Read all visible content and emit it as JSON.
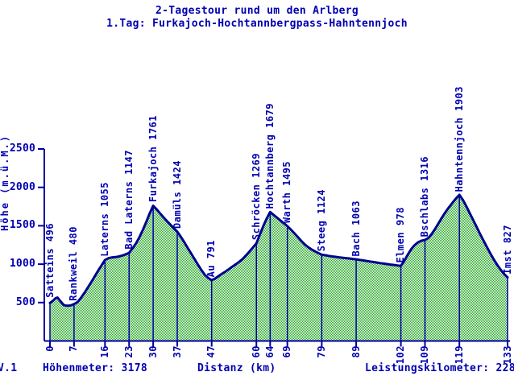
{
  "title": {
    "line1": "2-Tagestour rund um den Arlberg",
    "line2": "1.Tag: Furkajoch-Hochtannbergpass-Hahntennjoch"
  },
  "axes": {
    "y_label": "Höhe (m.ü.M.)",
    "x_label": "Distanz (km)"
  },
  "footer": {
    "version": "V.1",
    "elevation_gain": "Höhenmeter: 3178",
    "performance_km": "Leistungskilometer: 228"
  },
  "chart_data": {
    "type": "area",
    "title": "2-Tagestour rund um den Arlberg — 1.Tag: Furkajoch-Hochtannbergpass-Hahntennjoch",
    "xlabel": "Distanz (km)",
    "ylabel": "Höhe (m.ü.M.)",
    "xlim": [
      0,
      133
    ],
    "ylim": [
      0,
      2500
    ],
    "grid": false,
    "legend": "none",
    "y_ticks": [
      500,
      1000,
      1500,
      2000,
      2500
    ],
    "x_ticks": [
      0,
      7,
      16,
      23,
      30,
      37,
      47,
      60,
      64,
      69,
      79,
      89,
      102,
      109,
      119,
      133
    ],
    "waypoints": [
      {
        "name": "Satteins",
        "km": 0,
        "elevation": 496
      },
      {
        "name": "Rankweil",
        "km": 7,
        "elevation": 480
      },
      {
        "name": "Laterns",
        "km": 16,
        "elevation": 1055
      },
      {
        "name": "Bad Laterns",
        "km": 23,
        "elevation": 1147
      },
      {
        "name": "Furkajoch",
        "km": 30,
        "elevation": 1761
      },
      {
        "name": "Damüls",
        "km": 37,
        "elevation": 1424
      },
      {
        "name": "Au",
        "km": 47,
        "elevation": 791
      },
      {
        "name": "Schröcken",
        "km": 60,
        "elevation": 1269
      },
      {
        "name": "Hochtannberg",
        "km": 64,
        "elevation": 1679
      },
      {
        "name": "Warth",
        "km": 69,
        "elevation": 1495
      },
      {
        "name": "Steeg",
        "km": 79,
        "elevation": 1124
      },
      {
        "name": "Bach",
        "km": 89,
        "elevation": 1063
      },
      {
        "name": "Elmen",
        "km": 102,
        "elevation": 978
      },
      {
        "name": "Bschlabs",
        "km": 109,
        "elevation": 1316
      },
      {
        "name": "Hahntennjoch",
        "km": 119,
        "elevation": 1903
      },
      {
        "name": "Imst",
        "km": 133,
        "elevation": 827
      }
    ],
    "profile": [
      [
        0,
        496
      ],
      [
        0.8,
        520
      ],
      [
        1.6,
        556
      ],
      [
        2.2,
        565
      ],
      [
        3,
        520
      ],
      [
        4,
        468
      ],
      [
        5,
        458
      ],
      [
        6,
        462
      ],
      [
        7,
        480
      ],
      [
        8,
        505
      ],
      [
        9,
        560
      ],
      [
        10,
        625
      ],
      [
        11,
        695
      ],
      [
        12,
        765
      ],
      [
        13,
        840
      ],
      [
        14,
        915
      ],
      [
        15,
        985
      ],
      [
        16,
        1055
      ],
      [
        17,
        1078
      ],
      [
        18,
        1088
      ],
      [
        19,
        1092
      ],
      [
        20,
        1100
      ],
      [
        21,
        1112
      ],
      [
        22,
        1128
      ],
      [
        23,
        1147
      ],
      [
        24,
        1205
      ],
      [
        25,
        1270
      ],
      [
        26,
        1350
      ],
      [
        27,
        1445
      ],
      [
        28,
        1550
      ],
      [
        29,
        1660
      ],
      [
        30,
        1761
      ],
      [
        31,
        1715
      ],
      [
        32,
        1660
      ],
      [
        33,
        1610
      ],
      [
        34,
        1562
      ],
      [
        35,
        1515
      ],
      [
        36,
        1468
      ],
      [
        37,
        1424
      ],
      [
        38,
        1358
      ],
      [
        39,
        1288
      ],
      [
        40,
        1215
      ],
      [
        41,
        1142
      ],
      [
        42,
        1068
      ],
      [
        43,
        995
      ],
      [
        44,
        925
      ],
      [
        45,
        862
      ],
      [
        46,
        820
      ],
      [
        47,
        791
      ],
      [
        48,
        812
      ],
      [
        49,
        845
      ],
      [
        50,
        875
      ],
      [
        51,
        902
      ],
      [
        52,
        935
      ],
      [
        53,
        968
      ],
      [
        54,
        998
      ],
      [
        55,
        1030
      ],
      [
        56,
        1068
      ],
      [
        57,
        1115
      ],
      [
        58,
        1165
      ],
      [
        59,
        1218
      ],
      [
        60,
        1269
      ],
      [
        61,
        1385
      ],
      [
        62,
        1495
      ],
      [
        63,
        1595
      ],
      [
        64,
        1679
      ],
      [
        65,
        1642
      ],
      [
        66,
        1605
      ],
      [
        67,
        1568
      ],
      [
        68,
        1532
      ],
      [
        69,
        1495
      ],
      [
        70,
        1452
      ],
      [
        71,
        1405
      ],
      [
        72,
        1355
      ],
      [
        73,
        1305
      ],
      [
        74,
        1260
      ],
      [
        75,
        1222
      ],
      [
        76,
        1192
      ],
      [
        77,
        1168
      ],
      [
        78,
        1145
      ],
      [
        79,
        1124
      ],
      [
        80,
        1116
      ],
      [
        81,
        1108
      ],
      [
        82,
        1101
      ],
      [
        83,
        1095
      ],
      [
        84,
        1089
      ],
      [
        85,
        1084
      ],
      [
        86,
        1079
      ],
      [
        87,
        1074
      ],
      [
        88,
        1068
      ],
      [
        89,
        1063
      ],
      [
        90,
        1056
      ],
      [
        91,
        1049
      ],
      [
        92,
        1042
      ],
      [
        93,
        1035
      ],
      [
        94,
        1028
      ],
      [
        95,
        1021
      ],
      [
        96,
        1014
      ],
      [
        97,
        1007
      ],
      [
        98,
        1001
      ],
      [
        99,
        995
      ],
      [
        100,
        989
      ],
      [
        101,
        983
      ],
      [
        102,
        978
      ],
      [
        103,
        1045
      ],
      [
        104,
        1125
      ],
      [
        105,
        1195
      ],
      [
        106,
        1248
      ],
      [
        107,
        1285
      ],
      [
        108,
        1305
      ],
      [
        109,
        1316
      ],
      [
        110,
        1342
      ],
      [
        111,
        1395
      ],
      [
        112,
        1462
      ],
      [
        113,
        1538
      ],
      [
        114,
        1612
      ],
      [
        115,
        1680
      ],
      [
        116,
        1742
      ],
      [
        117,
        1800
      ],
      [
        118,
        1855
      ],
      [
        119,
        1903
      ],
      [
        120,
        1838
      ],
      [
        121,
        1755
      ],
      [
        122,
        1665
      ],
      [
        123,
        1575
      ],
      [
        124,
        1485
      ],
      [
        125,
        1395
      ],
      [
        126,
        1308
      ],
      [
        127,
        1222
      ],
      [
        128,
        1140
      ],
      [
        129,
        1062
      ],
      [
        130,
        990
      ],
      [
        131,
        928
      ],
      [
        132,
        872
      ],
      [
        133,
        827
      ]
    ],
    "colors": {
      "text": "#0000b0",
      "axis": "#0000a0",
      "marker_line": "#0000a0",
      "profile_line": "#000090",
      "area_green": "#1fa51f",
      "background": "#ffffff"
    }
  }
}
